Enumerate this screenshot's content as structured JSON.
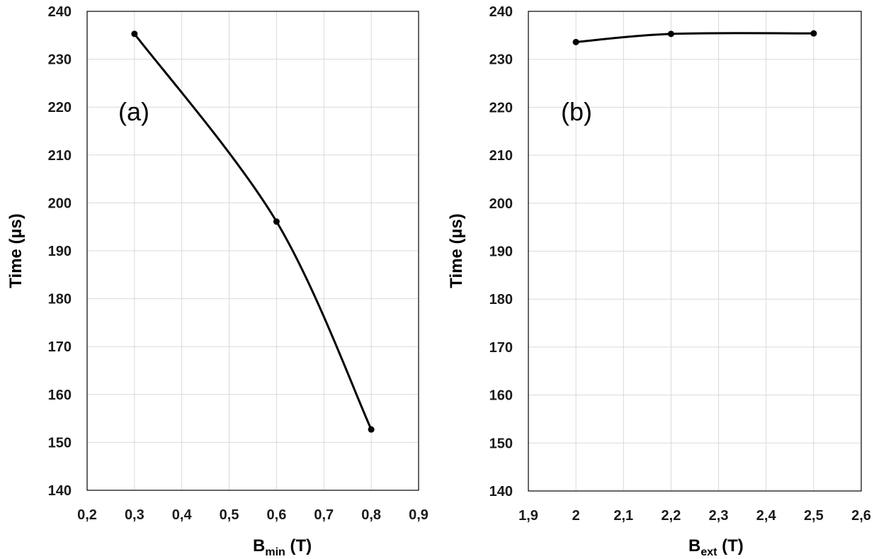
{
  "chart_data": [
    {
      "type": "line",
      "panel_label": "(a)",
      "xlabel": {
        "main": "B",
        "sub": "min",
        "unit": " (T)"
      },
      "ylabel": "Time (µs)",
      "xlim": [
        0.2,
        0.9
      ],
      "ylim": [
        140,
        240
      ],
      "x_ticks": [
        "0,2",
        "0,3",
        "0,4",
        "0,5",
        "0,6",
        "0,7",
        "0,8",
        "0,9"
      ],
      "y_ticks": [
        "140",
        "150",
        "160",
        "170",
        "180",
        "190",
        "200",
        "210",
        "220",
        "230",
        "240"
      ],
      "grid": true,
      "series": [
        {
          "name": "Time",
          "x": [
            0.3,
            0.6,
            0.8
          ],
          "y": [
            235.3,
            196.1,
            152.7
          ]
        }
      ],
      "line_color": "#000000"
    },
    {
      "type": "line",
      "panel_label": "(b)",
      "xlabel": {
        "main": "B",
        "sub": "ext",
        "unit": " (T)"
      },
      "ylabel": "Time (µs)",
      "xlim": [
        1.9,
        2.6
      ],
      "ylim": [
        140,
        240
      ],
      "x_ticks": [
        "1,9",
        "2",
        "2,1",
        "2,2",
        "2,3",
        "2,4",
        "2,5",
        "2,6"
      ],
      "y_ticks": [
        "140",
        "150",
        "160",
        "170",
        "180",
        "190",
        "200",
        "210",
        "220",
        "230",
        "240"
      ],
      "grid": true,
      "series": [
        {
          "name": "Time",
          "x": [
            2.0,
            2.2,
            2.5
          ],
          "y": [
            233.6,
            235.3,
            235.4
          ]
        }
      ],
      "line_color": "#000000"
    }
  ]
}
